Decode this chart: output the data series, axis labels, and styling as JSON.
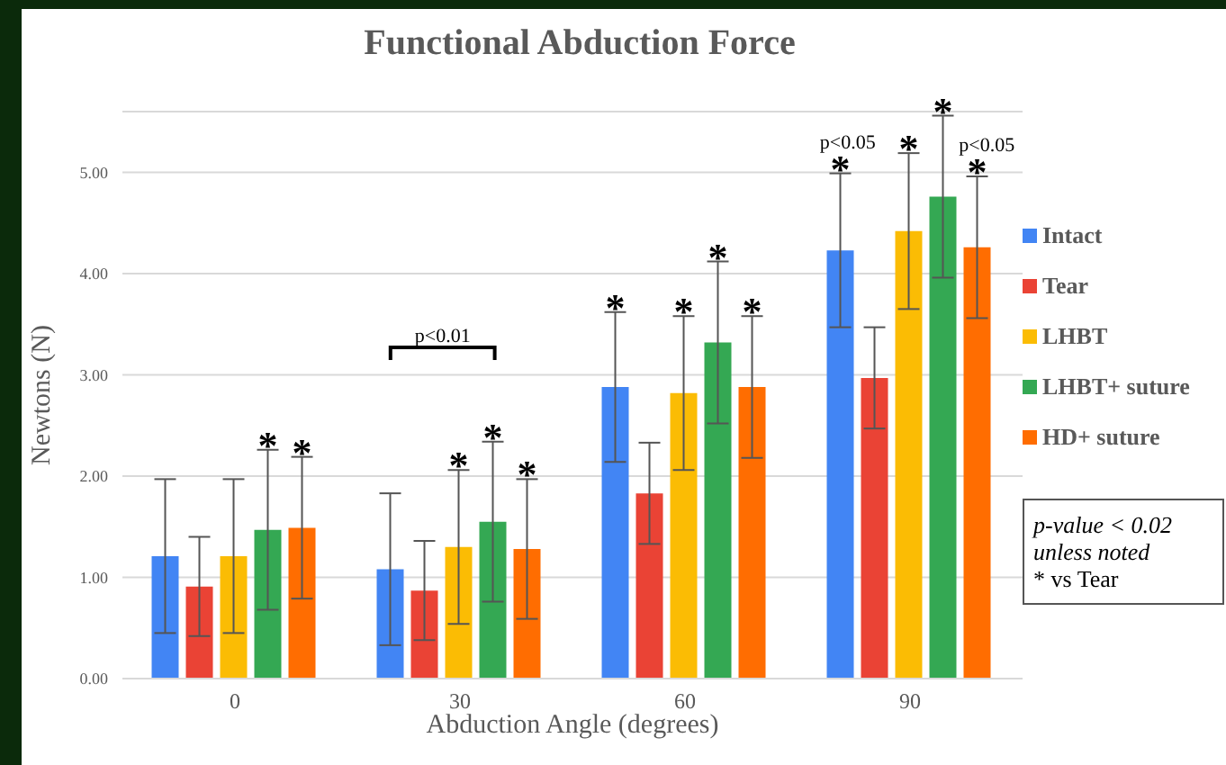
{
  "chart_data": {
    "type": "bar",
    "title": "Functional Abduction Force",
    "xlabel": "Abduction Angle (degrees)",
    "ylabel": "Newtons (N)",
    "categories": [
      "0",
      "30",
      "60",
      "90"
    ],
    "series": [
      {
        "name": "Intact",
        "color": "#4285f4",
        "values": [
          1.21,
          1.08,
          2.88,
          4.23
        ],
        "errors": [
          0.76,
          0.75,
          0.74,
          0.76
        ],
        "value_labels": [
          null,
          null,
          "*",
          "*"
        ]
      },
      {
        "name": "Tear",
        "color": "#ea4335",
        "values": [
          0.91,
          0.87,
          1.83,
          2.97
        ],
        "errors": [
          0.49,
          0.49,
          0.5,
          0.5
        ],
        "value_labels": [
          null,
          null,
          null,
          null
        ]
      },
      {
        "name": "LHBT",
        "color": "#fbbc04",
        "values": [
          1.21,
          1.3,
          2.82,
          4.42
        ],
        "errors": [
          0.76,
          0.76,
          0.76,
          0.77
        ],
        "value_labels": [
          null,
          "*",
          "*",
          "*"
        ]
      },
      {
        "name": "LHBT+ suture",
        "color": "#34a853",
        "values": [
          1.47,
          1.55,
          3.32,
          4.76
        ],
        "errors": [
          0.79,
          0.79,
          0.8,
          0.8
        ],
        "value_labels": [
          "*",
          "*",
          "*",
          "*"
        ]
      },
      {
        "name": "HD+ suture",
        "color": "#ff6d01",
        "values": [
          1.49,
          1.28,
          2.88,
          4.26
        ],
        "errors": [
          0.7,
          0.69,
          0.7,
          0.7
        ],
        "value_labels": [
          "*",
          "*",
          "*",
          "*"
        ]
      }
    ],
    "ylim": [
      0,
      5.6
    ],
    "yticks": [
      {
        "value": 0,
        "label": "0.00"
      },
      {
        "value": 1,
        "label": "1.00"
      },
      {
        "value": 2,
        "label": "2.00"
      },
      {
        "value": 3,
        "label": "3.00"
      },
      {
        "value": 4,
        "label": "4.00"
      },
      {
        "value": 5,
        "label": "5.00"
      }
    ],
    "grid": "y",
    "legend": "right",
    "annotations": [
      "p<0.01",
      "p<0.05",
      "p<0.05",
      "p-value < 0.02\nunless noted",
      "* vs Tear"
    ]
  }
}
